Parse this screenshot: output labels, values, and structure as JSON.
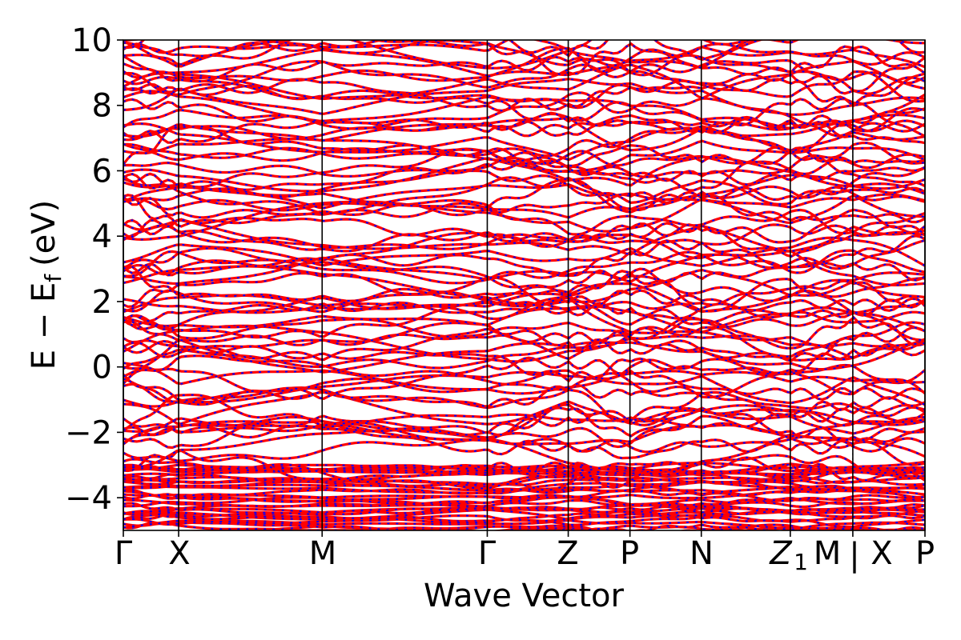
{
  "chart_data": {
    "type": "line",
    "title": "",
    "xlabel": "Wave Vector",
    "ylabel": "E − E",
    "ylabel_subscript": "f",
    "ylabel_unit": "(eV)",
    "ylim": [
      -5,
      10
    ],
    "yticks": [
      {
        "value": 10,
        "label": "10"
      },
      {
        "value": 8,
        "label": "8"
      },
      {
        "value": 6,
        "label": "6"
      },
      {
        "value": 4,
        "label": "4"
      },
      {
        "value": 2,
        "label": "2"
      },
      {
        "value": 0,
        "label": "0"
      },
      {
        "value": -2,
        "label": "−2"
      },
      {
        "value": -4,
        "label": "−4"
      }
    ],
    "kpath": [
      {
        "label": "Γ",
        "k": 0.0
      },
      {
        "label": "X",
        "k": 0.069
      },
      {
        "label": "M",
        "k": 0.248
      },
      {
        "label": "Γ",
        "k": 0.454
      },
      {
        "label": "Z",
        "k": 0.555
      },
      {
        "label": "P",
        "k": 0.632
      },
      {
        "label": "N",
        "k": 0.721
      },
      {
        "label": "Z",
        "sub": "1",
        "k": 0.832
      },
      {
        "label": "M",
        "k": 0.832
      },
      {
        "label": "|",
        "k": 0.91
      },
      {
        "label": "X",
        "k": 0.91
      },
      {
        "label": "P",
        "k": 1.0
      }
    ],
    "tick_text_labels": [
      "Γ",
      "X",
      "M",
      "Γ",
      "Z",
      "P",
      "N",
      "Z",
      "1",
      "M",
      "|",
      "X",
      "P"
    ],
    "series": [
      {
        "color": "#ff0000",
        "style": "solid"
      },
      {
        "color": "#0000ff",
        "style": "dashed"
      }
    ],
    "band_count": 120,
    "core_band_region": [
      -5,
      -3
    ],
    "grid": false
  }
}
